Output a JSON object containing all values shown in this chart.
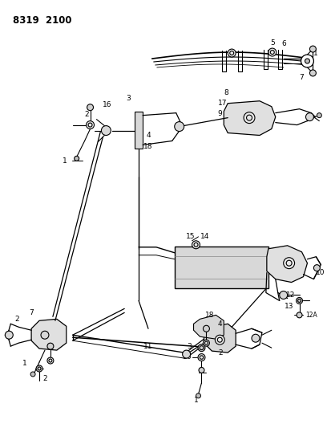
{
  "title": "8319  2100",
  "bg_color": "#ffffff",
  "line_color": "#1a1a1a",
  "title_fontsize": 8.5,
  "label_fontsize": 6.5,
  "figsize": [
    4.08,
    5.33
  ],
  "dpi": 100
}
